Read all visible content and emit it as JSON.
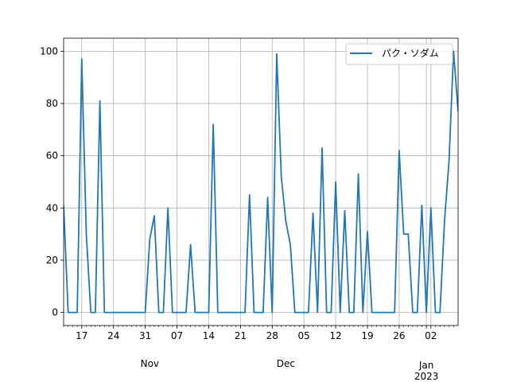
{
  "chart_data": {
    "type": "line",
    "title": "",
    "xlabel": "",
    "ylabel": "",
    "ylim": [
      -5,
      105
    ],
    "xlim": [
      "2022-10-13",
      "2023-01-07"
    ],
    "grid": true,
    "legend_position": "top-right",
    "colors": {
      "series": "#1f77b4",
      "grid": "#b0b0b0",
      "axis": "#000000"
    },
    "yticks": [
      0,
      20,
      40,
      60,
      80,
      100
    ],
    "xticks": [
      {
        "date": "2022-10-17",
        "label": "17"
      },
      {
        "date": "2022-10-24",
        "label": "24"
      },
      {
        "date": "2022-10-31",
        "label": "31"
      },
      {
        "date": "2022-11-07",
        "label": "07"
      },
      {
        "date": "2022-11-14",
        "label": "14"
      },
      {
        "date": "2022-11-21",
        "label": "21"
      },
      {
        "date": "2022-11-28",
        "label": "28"
      },
      {
        "date": "2022-12-05",
        "label": "05"
      },
      {
        "date": "2022-12-12",
        "label": "12"
      },
      {
        "date": "2022-12-19",
        "label": "19"
      },
      {
        "date": "2022-12-26",
        "label": "26"
      },
      {
        "date": "2023-01-02",
        "label": "02"
      }
    ],
    "month_labels": [
      {
        "date": "2022-11-01",
        "label": "Nov"
      },
      {
        "date": "2022-12-01",
        "label": "Dec"
      },
      {
        "date": "2023-01-01",
        "label": "Jan"
      }
    ],
    "year_label": {
      "date": "2023-01-01",
      "label": "2023"
    },
    "series": [
      {
        "name": "パク・ソダム",
        "points": [
          [
            "2022-10-13",
            41
          ],
          [
            "2022-10-14",
            0
          ],
          [
            "2022-10-15",
            0
          ],
          [
            "2022-10-16",
            0
          ],
          [
            "2022-10-17",
            97
          ],
          [
            "2022-10-18",
            30
          ],
          [
            "2022-10-19",
            0
          ],
          [
            "2022-10-20",
            0
          ],
          [
            "2022-10-21",
            81
          ],
          [
            "2022-10-22",
            0
          ],
          [
            "2022-10-23",
            0
          ],
          [
            "2022-10-24",
            0
          ],
          [
            "2022-10-25",
            0
          ],
          [
            "2022-10-26",
            0
          ],
          [
            "2022-10-27",
            0
          ],
          [
            "2022-10-28",
            0
          ],
          [
            "2022-10-29",
            0
          ],
          [
            "2022-10-30",
            0
          ],
          [
            "2022-10-31",
            0
          ],
          [
            "2022-11-01",
            28
          ],
          [
            "2022-11-02",
            37
          ],
          [
            "2022-11-03",
            0
          ],
          [
            "2022-11-04",
            0
          ],
          [
            "2022-11-05",
            40
          ],
          [
            "2022-11-06",
            0
          ],
          [
            "2022-11-07",
            0
          ],
          [
            "2022-11-08",
            0
          ],
          [
            "2022-11-09",
            0
          ],
          [
            "2022-11-10",
            26
          ],
          [
            "2022-11-11",
            0
          ],
          [
            "2022-11-12",
            0
          ],
          [
            "2022-11-13",
            0
          ],
          [
            "2022-11-14",
            0
          ],
          [
            "2022-11-15",
            72
          ],
          [
            "2022-11-16",
            0
          ],
          [
            "2022-11-17",
            0
          ],
          [
            "2022-11-18",
            0
          ],
          [
            "2022-11-19",
            0
          ],
          [
            "2022-11-20",
            0
          ],
          [
            "2022-11-21",
            0
          ],
          [
            "2022-11-22",
            0
          ],
          [
            "2022-11-23",
            45
          ],
          [
            "2022-11-24",
            0
          ],
          [
            "2022-11-25",
            0
          ],
          [
            "2022-11-26",
            0
          ],
          [
            "2022-11-27",
            44
          ],
          [
            "2022-11-28",
            0
          ],
          [
            "2022-11-29",
            99
          ],
          [
            "2022-11-30",
            52
          ],
          [
            "2022-12-01",
            35
          ],
          [
            "2022-12-02",
            26
          ],
          [
            "2022-12-03",
            0
          ],
          [
            "2022-12-04",
            0
          ],
          [
            "2022-12-05",
            0
          ],
          [
            "2022-12-06",
            0
          ],
          [
            "2022-12-07",
            38
          ],
          [
            "2022-12-08",
            0
          ],
          [
            "2022-12-09",
            63
          ],
          [
            "2022-12-10",
            0
          ],
          [
            "2022-12-11",
            0
          ],
          [
            "2022-12-12",
            50
          ],
          [
            "2022-12-13",
            0
          ],
          [
            "2022-12-14",
            39
          ],
          [
            "2022-12-15",
            0
          ],
          [
            "2022-12-16",
            0
          ],
          [
            "2022-12-17",
            53
          ],
          [
            "2022-12-18",
            0
          ],
          [
            "2022-12-19",
            31
          ],
          [
            "2022-12-20",
            0
          ],
          [
            "2022-12-21",
            0
          ],
          [
            "2022-12-22",
            0
          ],
          [
            "2022-12-23",
            0
          ],
          [
            "2022-12-24",
            0
          ],
          [
            "2022-12-25",
            0
          ],
          [
            "2022-12-26",
            62
          ],
          [
            "2022-12-27",
            30
          ],
          [
            "2022-12-28",
            30
          ],
          [
            "2022-12-29",
            0
          ],
          [
            "2022-12-30",
            0
          ],
          [
            "2022-12-31",
            41
          ],
          [
            "2023-01-01",
            0
          ],
          [
            "2023-01-02",
            40
          ],
          [
            "2023-01-03",
            0
          ],
          [
            "2023-01-04",
            0
          ],
          [
            "2023-01-05",
            35
          ],
          [
            "2023-01-06",
            58
          ],
          [
            "2023-01-07",
            100
          ],
          [
            "2023-01-08",
            77
          ]
        ]
      }
    ]
  }
}
